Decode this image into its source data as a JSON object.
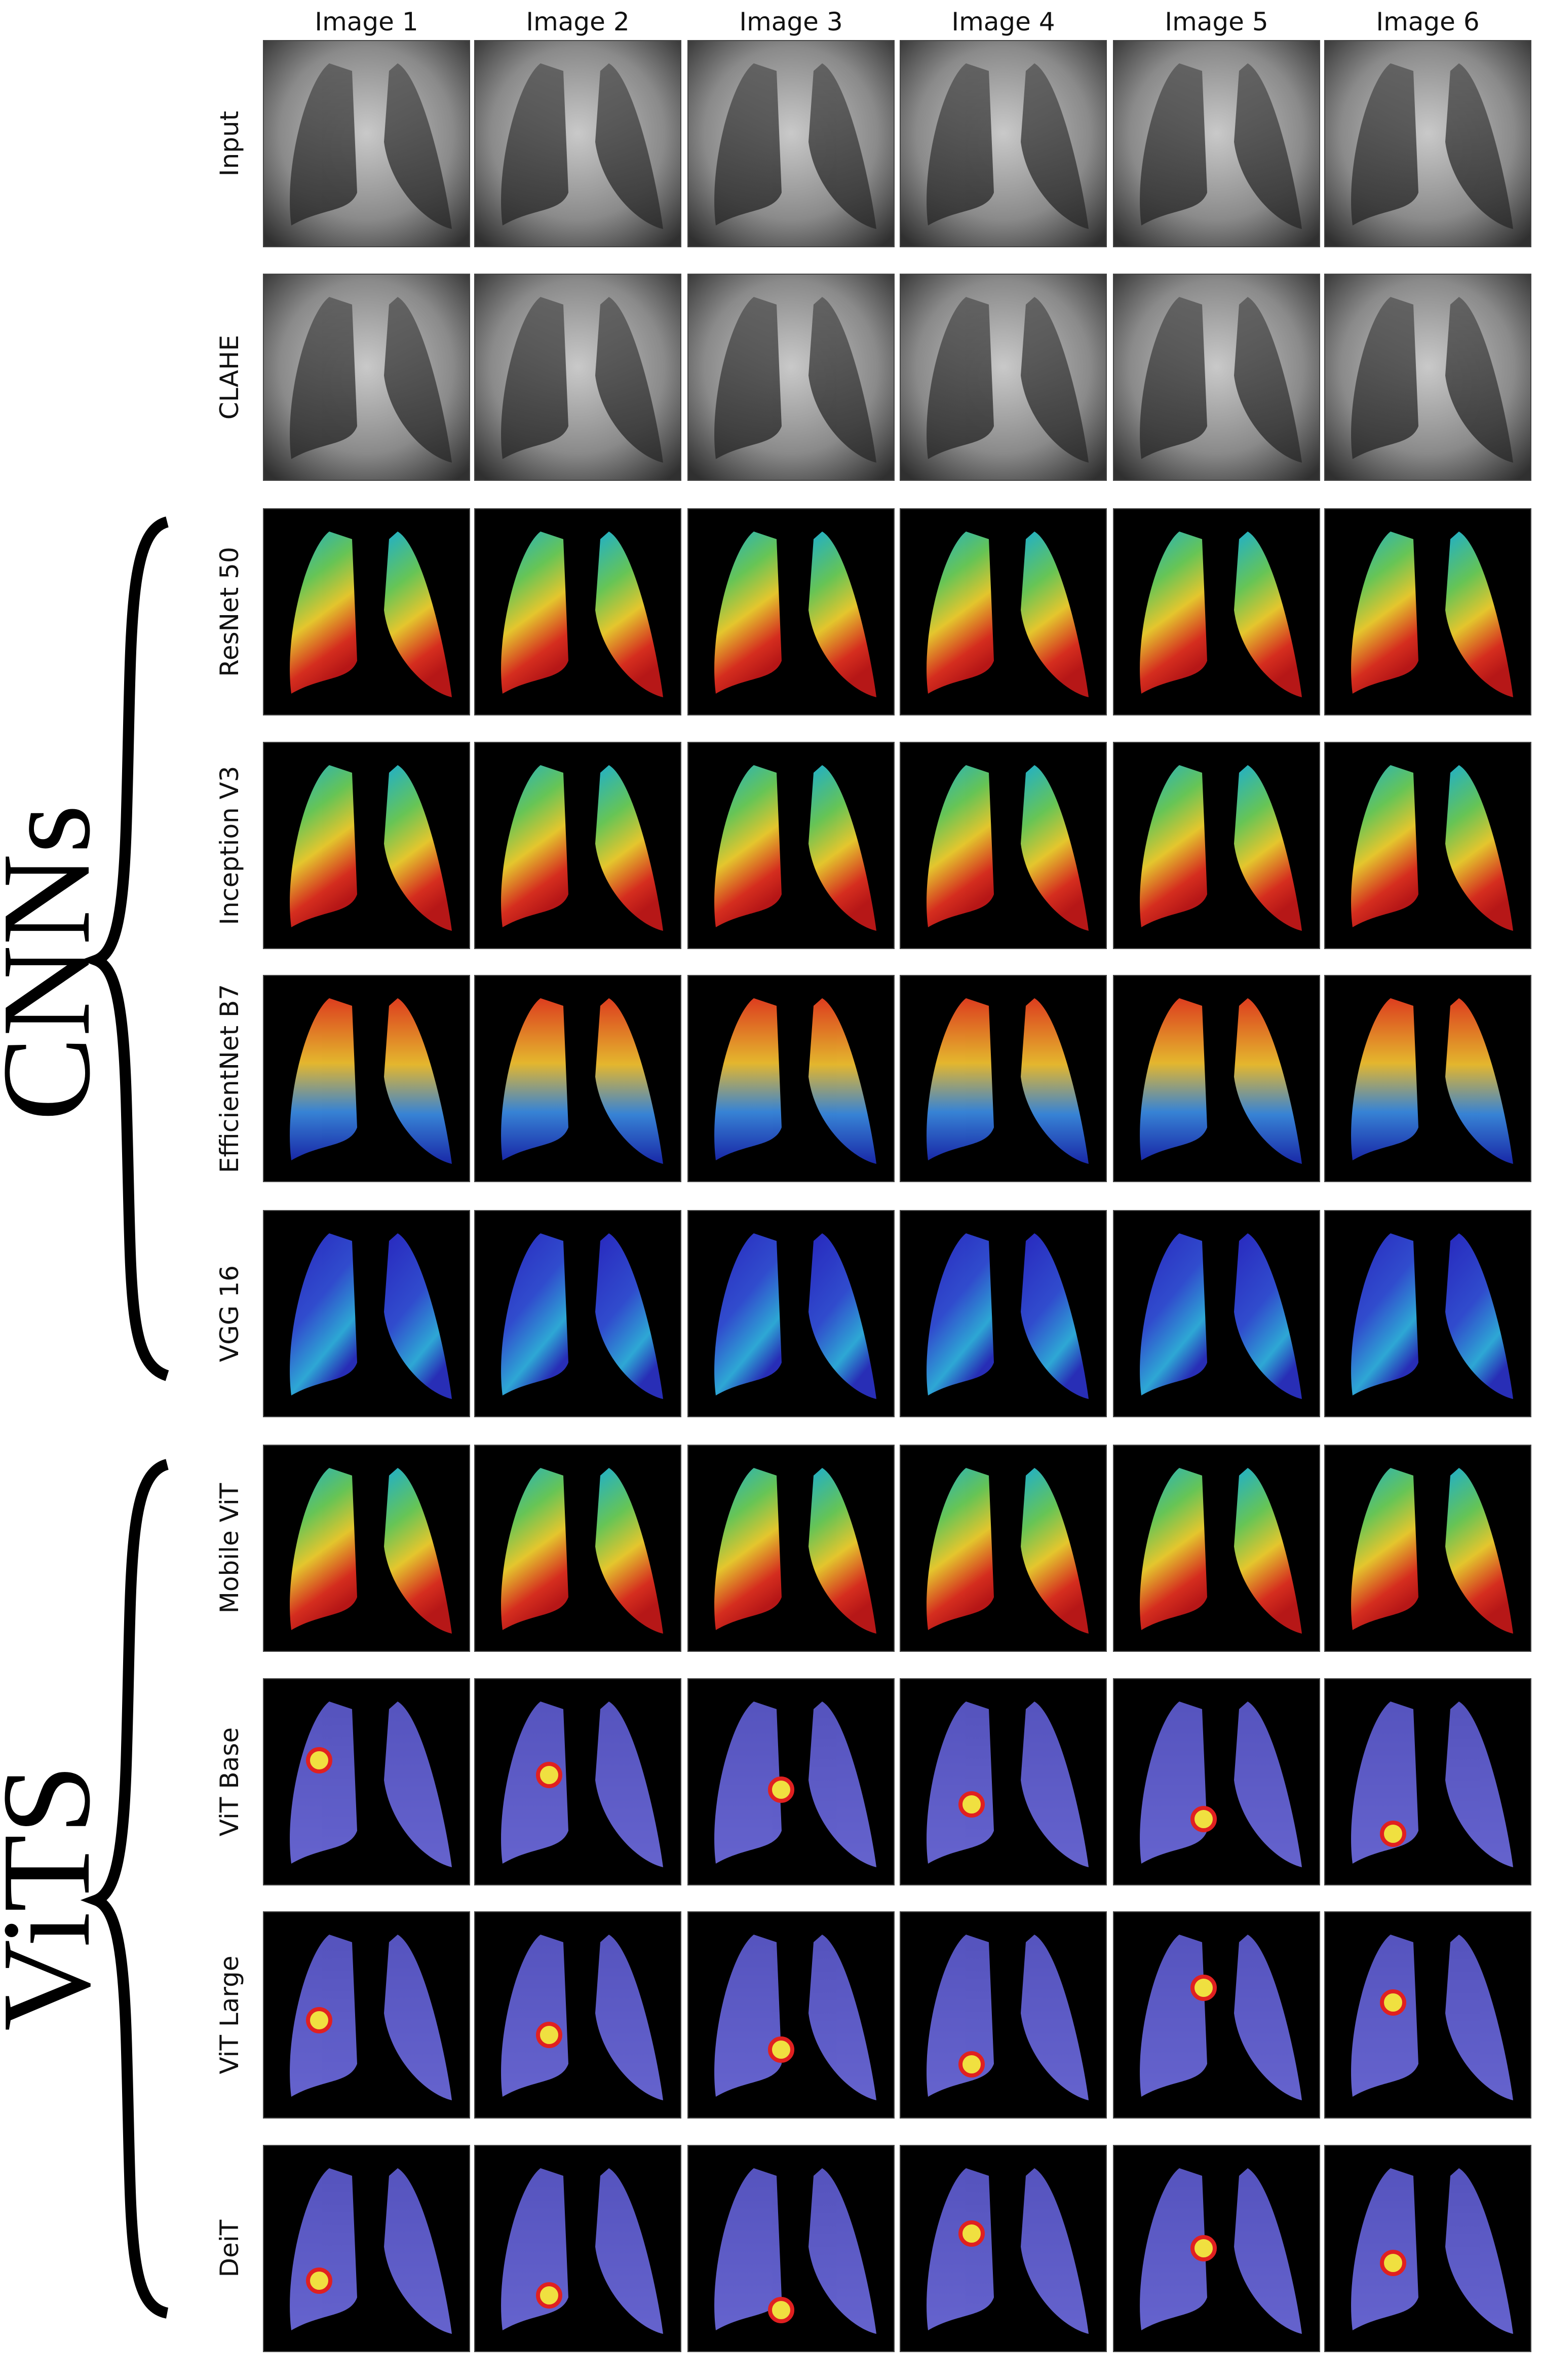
{
  "columns": [
    "Image 1",
    "Image 2",
    "Image 3",
    "Image 4",
    "Image 5",
    "Image 6"
  ],
  "rows": [
    "Input",
    "CLAHE",
    "ResNet 50",
    "Inception V3",
    "EfficientNet B7",
    "VGG 16",
    "Mobile ViT",
    "ViT Base",
    "ViT Large",
    "DeiT"
  ],
  "groups": [
    "CNNs",
    "ViTS"
  ]
}
